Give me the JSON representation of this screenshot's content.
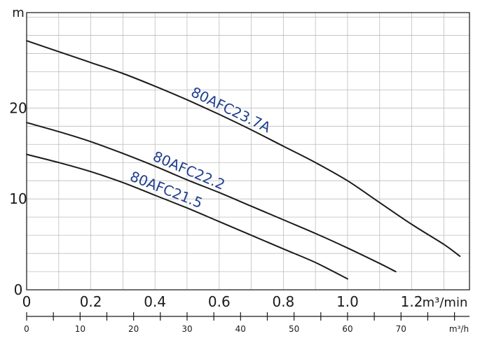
{
  "chart_data": {
    "type": "line",
    "xlabel": "m³/min",
    "ylabel": "m",
    "xlim": [
      0,
      1.38
    ],
    "ylim": [
      0,
      30.5
    ],
    "x_ticks": [
      "0",
      "0.2",
      "0.4",
      "0.6",
      "0.8",
      "1.0",
      "1.2"
    ],
    "y_ticks": [
      "0",
      "10",
      "20"
    ],
    "secondary_x_axis": {
      "label": "m³/h",
      "ticks": [
        "0",
        "10",
        "20",
        "30",
        "40",
        "50",
        "60",
        "70"
      ],
      "minor_step": 5
    },
    "grid": true,
    "series": [
      {
        "name": "80AFC23.7A",
        "x": [
          0.0,
          0.1,
          0.2,
          0.3,
          0.4,
          0.5,
          0.6,
          0.7,
          0.8,
          0.9,
          1.0,
          1.1,
          1.2,
          1.3,
          1.35
        ],
        "y": [
          27.4,
          26.2,
          25.0,
          23.8,
          22.4,
          20.9,
          19.3,
          17.6,
          15.8,
          14.0,
          12.0,
          9.6,
          7.2,
          5.0,
          3.7
        ]
      },
      {
        "name": "80AFC22.2",
        "x": [
          0.0,
          0.1,
          0.2,
          0.3,
          0.4,
          0.5,
          0.6,
          0.7,
          0.8,
          0.9,
          1.0,
          1.1,
          1.15
        ],
        "y": [
          18.4,
          17.4,
          16.3,
          15.0,
          13.6,
          12.1,
          10.7,
          9.2,
          7.7,
          6.2,
          4.6,
          2.9,
          2.0
        ]
      },
      {
        "name": "80AFC21.5",
        "x": [
          0.0,
          0.1,
          0.2,
          0.3,
          0.4,
          0.5,
          0.6,
          0.7,
          0.8,
          0.9,
          1.0
        ],
        "y": [
          14.9,
          14.0,
          13.0,
          11.8,
          10.4,
          9.0,
          7.5,
          6.0,
          4.5,
          3.0,
          1.2
        ]
      }
    ]
  },
  "colors": {
    "curve": "#1a1a1a",
    "series_label": "#1f3f8f",
    "grid": "#bdbdbd"
  }
}
